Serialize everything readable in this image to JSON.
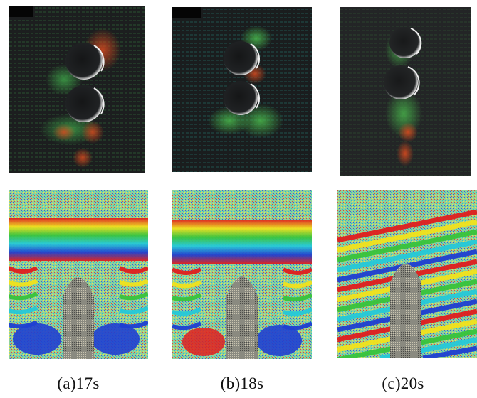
{
  "figure": {
    "panels": [
      {
        "id": "a",
        "label": "(a)17s",
        "time_s": 17
      },
      {
        "id": "b",
        "label": "(b)18s",
        "time_s": 18
      },
      {
        "id": "c",
        "label": "(c)20s",
        "time_s": 20
      }
    ]
  },
  "colors": {
    "piv_background": "#1c1e1f",
    "vector_green": "#3fa84a",
    "vector_red": "#c0392b",
    "vector_cyan": "#2bb3a6",
    "fringe_red": "#e01e1e",
    "fringe_yellow": "#f2e21c",
    "fringe_green": "#38c43c",
    "fringe_cyan": "#25c9d9",
    "fringe_blue": "#1f3fd1",
    "fringe_noise": "#7fcf8f"
  }
}
